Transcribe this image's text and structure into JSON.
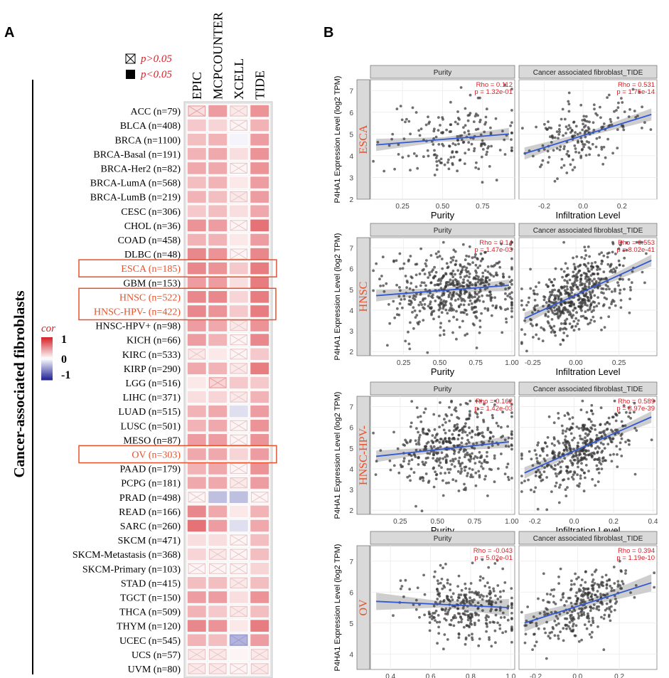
{
  "panels": {
    "a_label": "A",
    "b_label": "B"
  },
  "chart_data": [
    {
      "type": "heatmap",
      "title": "",
      "ylabel": "Cancer-associated fibroblasts",
      "columns": [
        "EPIC",
        "MCPCOUNTER",
        "XCELL",
        "TIDE"
      ],
      "rows": [
        "ACC (n=79)",
        "BLCA (n=408)",
        "BRCA (n=1100)",
        "BRCA-Basal (n=191)",
        "BRCA-Her2 (n=82)",
        "BRCA-LumA (n=568)",
        "BRCA-LumB (n=219)",
        "CESC (n=306)",
        "CHOL (n=36)",
        "COAD (n=458)",
        "DLBC (n=48)",
        "ESCA (n=185)",
        "GBM (n=153)",
        "HNSC (n=522)",
        "HNSC-HPV- (n=422)",
        "HNSC-HPV+ (n=98)",
        "KICH (n=66)",
        "KIRC (n=533)",
        "KIRP (n=290)",
        "LGG (n=516)",
        "LIHC (n=371)",
        "LUAD (n=515)",
        "LUSC (n=501)",
        "MESO (n=87)",
        "OV (n=303)",
        "PAAD (n=179)",
        "PCPG (n=181)",
        "PRAD (n=498)",
        "READ (n=166)",
        "SARC (n=260)",
        "SKCM (n=471)",
        "SKCM-Metastasis (n=368)",
        "SKCM-Primary (n=103)",
        "STAD (n=415)",
        "TGCT (n=150)",
        "THCA (n=509)",
        "THYM (n=120)",
        "UCEC (n=545)",
        "UCS (n=57)",
        "UVM (n=80)"
      ],
      "values": [
        [
          0.15,
          0.45,
          0.1,
          0.5
        ],
        [
          0.25,
          0.2,
          0.05,
          0.35
        ],
        [
          0.3,
          0.35,
          -0.05,
          0.45
        ],
        [
          0.35,
          0.4,
          0.15,
          0.5
        ],
        [
          0.4,
          0.4,
          0.05,
          0.5
        ],
        [
          0.3,
          0.35,
          0.1,
          0.45
        ],
        [
          0.35,
          0.3,
          0.1,
          0.45
        ],
        [
          0.25,
          0.3,
          0.15,
          0.4
        ],
        [
          0.5,
          0.45,
          0.05,
          0.65
        ],
        [
          0.35,
          0.35,
          0.1,
          0.45
        ],
        [
          0.55,
          0.5,
          0.05,
          0.55
        ],
        [
          0.55,
          0.5,
          0.25,
          0.6
        ],
        [
          0.45,
          0.45,
          0.15,
          0.6
        ],
        [
          0.55,
          0.55,
          0.2,
          0.6
        ],
        [
          0.55,
          0.5,
          0.25,
          0.6
        ],
        [
          0.45,
          0.4,
          0.1,
          0.5
        ],
        [
          0.45,
          0.35,
          0.05,
          0.55
        ],
        [
          0.1,
          0.1,
          0.05,
          0.25
        ],
        [
          0.4,
          0.35,
          0.1,
          0.6
        ],
        [
          0.1,
          0.2,
          0.25,
          0.25
        ],
        [
          0.15,
          0.2,
          0.1,
          0.35
        ],
        [
          0.35,
          0.4,
          -0.15,
          0.45
        ],
        [
          0.35,
          0.4,
          0.05,
          0.5
        ],
        [
          0.45,
          0.45,
          0.05,
          0.5
        ],
        [
          0.4,
          0.4,
          0.2,
          0.45
        ],
        [
          0.35,
          0.4,
          0.05,
          0.5
        ],
        [
          0.4,
          0.4,
          0.1,
          0.45
        ],
        [
          0.05,
          -0.3,
          -0.3,
          0.05
        ],
        [
          0.55,
          0.4,
          0.1,
          0.35
        ],
        [
          0.65,
          0.45,
          -0.15,
          0.4
        ],
        [
          0.15,
          0.15,
          0.05,
          0.3
        ],
        [
          0.2,
          0.1,
          0.05,
          0.3
        ],
        [
          0.05,
          0.05,
          0.05,
          0.2
        ],
        [
          0.3,
          0.3,
          0.1,
          0.3
        ],
        [
          0.45,
          0.45,
          0.15,
          0.5
        ],
        [
          0.35,
          0.25,
          0.1,
          0.3
        ],
        [
          0.55,
          0.5,
          0.1,
          0.6
        ],
        [
          0.35,
          0.3,
          -0.35,
          0.45
        ],
        [
          0.1,
          0.1,
          0.05,
          0.1
        ],
        [
          0.1,
          0.1,
          0.05,
          0.1
        ]
      ],
      "insignificant": [
        [
          1,
          0,
          1,
          0
        ],
        [
          0,
          0,
          1,
          0
        ],
        [
          0,
          0,
          0,
          0
        ],
        [
          0,
          0,
          0,
          0
        ],
        [
          0,
          0,
          1,
          0
        ],
        [
          0,
          0,
          0,
          0
        ],
        [
          0,
          0,
          1,
          0
        ],
        [
          0,
          0,
          0,
          0
        ],
        [
          0,
          0,
          1,
          0
        ],
        [
          0,
          0,
          0,
          0
        ],
        [
          0,
          0,
          1,
          0
        ],
        [
          0,
          0,
          0,
          0
        ],
        [
          0,
          0,
          0,
          0
        ],
        [
          0,
          0,
          0,
          0
        ],
        [
          0,
          0,
          0,
          0
        ],
        [
          0,
          0,
          1,
          0
        ],
        [
          0,
          0,
          1,
          0
        ],
        [
          1,
          0,
          1,
          0
        ],
        [
          0,
          0,
          1,
          0
        ],
        [
          0,
          1,
          0,
          0
        ],
        [
          0,
          0,
          1,
          0
        ],
        [
          0,
          0,
          0,
          0
        ],
        [
          0,
          0,
          1,
          0
        ],
        [
          0,
          0,
          1,
          0
        ],
        [
          0,
          0,
          0,
          0
        ],
        [
          0,
          0,
          1,
          0
        ],
        [
          0,
          0,
          1,
          0
        ],
        [
          1,
          0,
          0,
          1
        ],
        [
          0,
          0,
          0,
          0
        ],
        [
          0,
          0,
          0,
          0
        ],
        [
          0,
          0,
          1,
          0
        ],
        [
          0,
          1,
          1,
          0
        ],
        [
          1,
          1,
          1,
          0
        ],
        [
          0,
          0,
          1,
          0
        ],
        [
          0,
          0,
          0,
          0
        ],
        [
          0,
          0,
          1,
          0
        ],
        [
          0,
          0,
          0,
          0
        ],
        [
          0,
          0,
          1,
          0
        ],
        [
          1,
          1,
          0,
          1
        ],
        [
          1,
          1,
          1,
          1
        ]
      ],
      "highlighted_rows": [
        "ESCA (n=185)",
        "HNSC (n=522)",
        "HNSC-HPV- (n=422)",
        "OV (n=303)"
      ],
      "significance_legend": {
        "crossed": "p>0.05",
        "filled": "p<0.05"
      },
      "colorbar": {
        "title": "cor",
        "ticks": [
          "1",
          "0",
          "-1"
        ],
        "range": [
          -1,
          1
        ]
      }
    },
    {
      "type": "scatter",
      "ylabel": "P4HA1 Expression Level (log2 TPM)",
      "strip_labels": [
        "Purity",
        "Cancer associated fibroblast_TIDE"
      ],
      "xlabels": [
        "Purity",
        "Infiltration Level"
      ],
      "rows": [
        {
          "name": "ESCA",
          "ylim": [
            2,
            7.5
          ],
          "yticks": [
            "2",
            "3",
            "4",
            "5",
            "6",
            "7"
          ],
          "left": {
            "xlim": [
              0.05,
              0.95
            ],
            "xticks": [
              "0.25",
              "0.50",
              "0.75"
            ],
            "rho": "Rho = 0.112",
            "p": "p = 1.32e-01",
            "fit": [
              4.5,
              5.0
            ],
            "n": 185,
            "cx": 0.55,
            "sx": 0.2,
            "cy": 4.9,
            "sy": 0.85
          },
          "right": {
            "xlim": [
              -0.33,
              0.38
            ],
            "xticks": [
              "-0.2",
              "0.0",
              "0.2"
            ],
            "rho": "Rho = 0.531",
            "p": "p = 1.75e-14",
            "fit": [
              4.1,
              5.9
            ],
            "n": 185,
            "cx": 0.0,
            "sx": 0.14,
            "cy": 4.9,
            "sy": 0.75
          }
        },
        {
          "name": "HNSC",
          "ylim": [
            1.8,
            7.5
          ],
          "yticks": [
            "2",
            "3",
            "4",
            "5",
            "6",
            "7"
          ],
          "left": {
            "xlim": [
              0.02,
              1.02
            ],
            "xticks": [
              "0.25",
              "0.50",
              "0.75",
              "1.00"
            ],
            "rho": "Rho = 0.14",
            "p": "p = 1.47e-03",
            "fit": [
              4.7,
              5.2
            ],
            "n": 520,
            "cx": 0.6,
            "sx": 0.22,
            "cy": 4.9,
            "sy": 0.95
          },
          "right": {
            "xlim": [
              -0.33,
              0.47
            ],
            "xticks": [
              "-0.25",
              "0.00",
              "0.25"
            ],
            "rho": "Rho = 0.553",
            "p": "p = 8.02e-41",
            "fit": [
              3.6,
              6.4
            ],
            "n": 520,
            "cx": 0.0,
            "sx": 0.14,
            "cy": 4.9,
            "sy": 0.85
          }
        },
        {
          "name": "HNSC-HPV-",
          "ylim": [
            1.8,
            7.5
          ],
          "yticks": [
            "2",
            "3",
            "4",
            "5",
            "6",
            "7"
          ],
          "left": {
            "xlim": [
              0.05,
              1.02
            ],
            "xticks": [
              "0.25",
              "0.50",
              "0.75",
              "1.00"
            ],
            "rho": "Rho = 0.162",
            "p": "p = 1.42e-03",
            "fit": [
              4.6,
              5.3
            ],
            "n": 420,
            "cx": 0.6,
            "sx": 0.2,
            "cy": 4.9,
            "sy": 0.95
          },
          "right": {
            "xlim": [
              -0.28,
              0.42
            ],
            "xticks": [
              "-0.2",
              "0.0",
              "0.2",
              "0.4"
            ],
            "rho": "Rho = 0.589",
            "p": "p = 8.97e-39",
            "fit": [
              3.8,
              6.5
            ],
            "n": 420,
            "cx": 0.02,
            "sx": 0.13,
            "cy": 4.9,
            "sy": 0.85
          }
        },
        {
          "name": "OV",
          "ylim": [
            3.5,
            7.5
          ],
          "yticks": [
            "4",
            "5",
            "6",
            "7"
          ],
          "left": {
            "xlim": [
              0.3,
              1.02
            ],
            "xticks": [
              "0.4",
              "0.6",
              "0.8",
              "1.0"
            ],
            "rho": "Rho = -0.043",
            "p": "p = 5.02e-01",
            "fit": [
              5.7,
              5.5
            ],
            "n": 303,
            "cx": 0.78,
            "sx": 0.13,
            "cy": 5.6,
            "sy": 0.55
          },
          "right": {
            "xlim": [
              -0.28,
              0.38
            ],
            "xticks": [
              "-0.2",
              "0.0",
              "0.2"
            ],
            "rho": "Rho = 0.394",
            "p": "p = 1.19e-10",
            "fit": [
              5.0,
              6.3
            ],
            "n": 303,
            "cx": 0.02,
            "sx": 0.12,
            "cy": 5.6,
            "sy": 0.55
          }
        }
      ]
    }
  ],
  "colors": {
    "red": "#d8202a",
    "blue": "#2a2a9c",
    "orange": "#e8502a",
    "line": "#3358d4",
    "strip": "#d9d9d9",
    "band": "#c2c2c2"
  }
}
